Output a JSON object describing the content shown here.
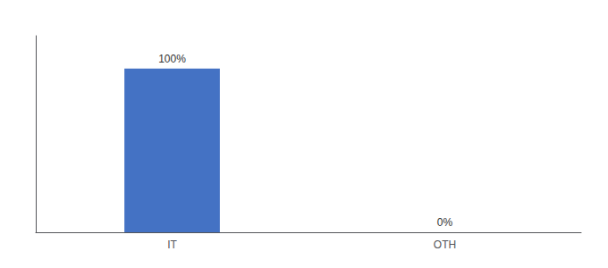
{
  "chart_data": {
    "type": "bar",
    "categories": [
      "IT",
      "OTH"
    ],
    "values": [
      100,
      0
    ],
    "value_labels": [
      "100%",
      "0%"
    ],
    "data_labels": true,
    "color": "#4472c4",
    "ylim": [
      0,
      120
    ],
    "tick_labels": "x",
    "grid": false
  }
}
